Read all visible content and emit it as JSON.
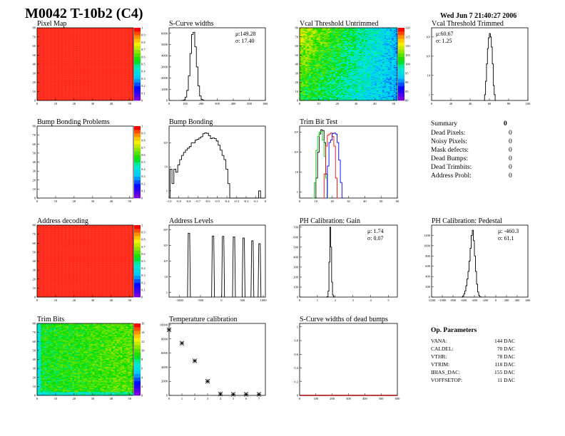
{
  "header": {
    "title": "M0042 T-10b2 (C4)",
    "date": "Wed Jun  7 21:40:27 2006"
  },
  "summary": {
    "title": "Summary",
    "total": "0",
    "rows": [
      {
        "label": "Dead Pixels:",
        "value": "0"
      },
      {
        "label": "Noisy Pixels:",
        "value": "0"
      },
      {
        "label": "Mask defects:",
        "value": "0"
      },
      {
        "label": "Dead Bumps:",
        "value": "0"
      },
      {
        "label": "Dead Trimbits:",
        "value": "0"
      },
      {
        "label": "Address Probl:",
        "value": "0"
      }
    ]
  },
  "op_parameters": {
    "title": "Op. Parameters",
    "rows": [
      {
        "label": "VANA:",
        "value": "144 DAC"
      },
      {
        "label": "CALDEL:",
        "value": "70 DAC"
      },
      {
        "label": "VTHR:",
        "value": "78 DAC"
      },
      {
        "label": "VTRIM:",
        "value": "118 DAC"
      },
      {
        "label": "IBIAS_DAC:",
        "value": "155 DAC"
      },
      {
        "label": "VOFFSETOP:",
        "value": "11 DAC"
      }
    ]
  },
  "colors": {
    "red": "#ff0000",
    "green": "#00cc00",
    "blue": "#0000ff",
    "black": "#000000",
    "frame": "#000000"
  },
  "chart_data": [
    {
      "id": "pixel-map",
      "type": "heatmap",
      "title": "Pixel Map",
      "xlim": [
        0,
        52
      ],
      "ylim": [
        0,
        80
      ],
      "zlim": [
        0,
        1
      ],
      "xticks": [
        "0",
        "10",
        "20",
        "30",
        "40",
        "50"
      ],
      "yticks": [
        "0",
        "10",
        "20",
        "30",
        "40",
        "50",
        "60",
        "70",
        "80"
      ],
      "zticks": [
        "0",
        "0.1",
        "0.2",
        "0.3",
        "0.4",
        "0.5",
        "0.6",
        "0.7",
        "0.8",
        "0.9",
        "1"
      ],
      "pattern": "uniform",
      "z_mean": 1.0
    },
    {
      "id": "s-curve-widths",
      "type": "bar",
      "title": "S-Curve widths",
      "xlim": [
        0,
        600
      ],
      "ylim": [
        0,
        6500
      ],
      "log_y": false,
      "xticks": [
        "0",
        "100",
        "200",
        "300",
        "400",
        "500",
        "600"
      ],
      "yticks": [
        "0",
        "1000",
        "2000",
        "3000",
        "4000",
        "5000",
        "6000"
      ],
      "stats": [
        "μ:149.28",
        "σ: 17.40"
      ],
      "series": [
        {
          "color": "#000000",
          "x0": 80,
          "w": 10,
          "counts": [
            10,
            50,
            300,
            900,
            2200,
            4200,
            5900,
            6100,
            4800,
            3000,
            1300,
            400,
            100,
            20
          ]
        }
      ]
    },
    {
      "id": "vcal-threshold-untrimmed",
      "type": "heatmap",
      "title": "Vcal Threshold Untrimmed",
      "xlim": [
        0,
        52
      ],
      "ylim": [
        0,
        80
      ],
      "zlim": [
        75,
        125
      ],
      "xticks": [
        "0",
        "10",
        "20",
        "30",
        "40",
        "50"
      ],
      "yticks": [
        "0",
        "10",
        "20",
        "30",
        "40",
        "50",
        "60",
        "70",
        "80"
      ],
      "zticks": [
        "80",
        "85",
        "90",
        "95",
        "100",
        "105",
        "110",
        "115",
        "120"
      ],
      "pattern": "gradient-left-high",
      "z_mean": 100
    },
    {
      "id": "vcal-threshold-trimmed",
      "type": "bar",
      "title": "Vcal Threshold Trimmed",
      "xlim": [
        0,
        100
      ],
      "ylim": [
        0.5,
        3000
      ],
      "log_y": true,
      "xticks": [
        "0",
        "20",
        "40",
        "60",
        "80",
        "100"
      ],
      "yticks": [
        "1",
        "10",
        "10²",
        "10³"
      ],
      "stats": [
        "μ:60.67",
        "σ: 1.25"
      ],
      "series": [
        {
          "color": "#000000",
          "x0": 54,
          "w": 1,
          "counts": [
            0,
            1,
            5,
            40,
            250,
            900,
            1500,
            1000,
            300,
            40,
            3,
            1,
            0
          ]
        }
      ]
    },
    {
      "id": "bump-bonding-problems",
      "type": "heatmap",
      "title": "Bump Bonding Problems",
      "xlim": [
        0,
        52
      ],
      "ylim": [
        0,
        80
      ],
      "zlim": [
        0,
        1
      ],
      "xticks": [
        "0",
        "10",
        "20",
        "30",
        "40",
        "50"
      ],
      "yticks": [
        "0",
        "10",
        "20",
        "30",
        "40",
        "50",
        "60",
        "70",
        "80"
      ],
      "zticks": [
        "0",
        "0.1",
        "0.2",
        "0.3",
        "0.4",
        "0.5",
        "0.6",
        "0.7",
        "0.8",
        "0.9",
        "1"
      ],
      "pattern": "empty",
      "z_mean": 0
    },
    {
      "id": "bump-bonding",
      "type": "bar",
      "title": "Bump Bonding",
      "xlim": [
        -1,
        0
      ],
      "ylim": [
        0.5,
        500
      ],
      "log_y": true,
      "xticks": [
        "-1.0",
        "-0.9",
        "-0.8",
        "-0.7",
        "-0.6",
        "-0.5",
        "-0.4",
        "-0.3",
        "-0.2",
        "-0.1",
        "0"
      ],
      "yticks": [
        "1",
        "10",
        "10²"
      ],
      "stats": [],
      "series": [
        {
          "color": "#000000",
          "x0": -0.99,
          "w": 0.02,
          "counts": [
            8,
            2,
            8,
            6,
            12,
            20,
            30,
            40,
            50,
            60,
            70,
            100,
            100,
            130,
            140,
            160,
            180,
            240,
            260,
            250,
            200,
            150,
            160,
            150,
            120,
            80,
            50,
            30,
            20,
            8,
            2,
            0,
            0,
            0,
            0,
            0,
            0,
            0,
            0,
            0,
            0,
            0,
            0,
            0,
            0,
            0,
            1,
            0,
            0
          ]
        }
      ]
    },
    {
      "id": "trim-bit-test",
      "type": "bar",
      "title": "Trim Bit Test",
      "xlim": [
        0,
        60
      ],
      "ylim": [
        0.5,
        2000
      ],
      "log_y": true,
      "xticks": [
        "0",
        "10",
        "20",
        "30",
        "40",
        "50",
        "60"
      ],
      "yticks": [
        "1",
        "10",
        "10²",
        "10³"
      ],
      "stats": [],
      "series": [
        {
          "color": "#000000",
          "x0": 9,
          "w": 1,
          "counts": [
            0,
            5,
            100,
            800,
            1300,
            1200,
            300,
            8,
            0
          ]
        },
        {
          "color": "#00cc00",
          "x0": 8,
          "w": 1,
          "counts": [
            0,
            3,
            120,
            600,
            1000,
            1100,
            400,
            60,
            5,
            0
          ]
        },
        {
          "color": "#ff0000",
          "x0": 14,
          "w": 1,
          "counts": [
            0,
            8,
            200,
            700,
            800,
            900,
            600,
            200,
            5,
            0
          ]
        },
        {
          "color": "#0000ff",
          "x0": 16,
          "w": 1,
          "counts": [
            0,
            20,
            300,
            400,
            850,
            900,
            800,
            300,
            40,
            3,
            0
          ]
        }
      ]
    },
    {
      "id": "address-decoding",
      "type": "heatmap",
      "title": "Address decoding",
      "xlim": [
        0,
        52
      ],
      "ylim": [
        0,
        80
      ],
      "zlim": [
        0,
        1
      ],
      "xticks": [
        "0",
        "10",
        "20",
        "30",
        "40",
        "50"
      ],
      "yticks": [
        "0",
        "10",
        "20",
        "30",
        "40",
        "50",
        "60",
        "70",
        "80"
      ],
      "zticks": [
        "0",
        "0.1",
        "0.2",
        "0.3",
        "0.4",
        "0.5",
        "0.6",
        "0.7",
        "0.8",
        "0.9",
        "1"
      ],
      "pattern": "uniform",
      "z_mean": 1.0
    },
    {
      "id": "address-levels",
      "type": "bar",
      "title": "Address Levels",
      "xlim": [
        -1250,
        1050
      ],
      "ylim": [
        0.5,
        20000
      ],
      "log_y": true,
      "xticks": [
        "-1000",
        "-500",
        "0",
        "500",
        "1000"
      ],
      "yticks": [
        "1",
        "10",
        "10²",
        "10³",
        "10⁴"
      ],
      "stats": [],
      "peaks": [
        {
          "x": -775,
          "y": 6000
        },
        {
          "x": -200,
          "y": 4000
        },
        {
          "x": 40,
          "y": 3800
        },
        {
          "x": 300,
          "y": 3500
        },
        {
          "x": 530,
          "y": 3000
        },
        {
          "x": 740,
          "y": 2000
        },
        {
          "x": 910,
          "y": 1300
        }
      ]
    },
    {
      "id": "ph-calibration-gain",
      "type": "bar",
      "title": "PH Calibration: Gain",
      "xlim": [
        0,
        5.5
      ],
      "ylim": [
        0,
        720
      ],
      "log_y": false,
      "xticks": [
        "0",
        "1",
        "2",
        "3",
        "4",
        "5"
      ],
      "yticks": [
        "0",
        "100",
        "200",
        "300",
        "400",
        "500",
        "600",
        "700"
      ],
      "stats": [
        "μ: 1.74",
        "σ: 0.07"
      ],
      "series": [
        {
          "color": "#000000",
          "x0": 1.5,
          "w": 0.05,
          "counts": [
            0,
            5,
            60,
            350,
            700,
            500,
            150,
            20,
            2,
            0
          ]
        }
      ]
    },
    {
      "id": "ph-calibration-pedestal",
      "type": "bar",
      "title": "PH Calibration: Pedestal",
      "xlim": [
        -1200,
        600
      ],
      "ylim": [
        0,
        1400
      ],
      "log_y": false,
      "xticks": [
        "-1200",
        "-1000",
        "-800",
        "-600",
        "-400",
        "-200",
        "0",
        "200",
        "400",
        "600"
      ],
      "yticks": [
        "0",
        "200",
        "400",
        "600",
        "800",
        "1000",
        "1200"
      ],
      "stats": [
        "μ: -460.3",
        "σ: 61.1"
      ],
      "series": [
        {
          "color": "#000000",
          "x0": -640,
          "w": 20,
          "counts": [
            0,
            20,
            60,
            120,
            220,
            350,
            500,
            700,
            950,
            1200,
            1300,
            1100,
            800,
            500,
            250,
            100,
            30,
            5,
            0
          ]
        }
      ]
    },
    {
      "id": "trim-bits",
      "type": "heatmap",
      "title": "Trim Bits",
      "xlim": [
        0,
        52
      ],
      "ylim": [
        0,
        80
      ],
      "zlim": [
        0,
        16
      ],
      "xticks": [
        "0",
        "10",
        "20",
        "30",
        "40",
        "50"
      ],
      "yticks": [
        "0",
        "10",
        "20",
        "30",
        "40",
        "50",
        "60",
        "70",
        "80"
      ],
      "zticks": [
        "0",
        "2",
        "4",
        "6",
        "8",
        "10",
        "12",
        "14",
        "16"
      ],
      "pattern": "noise-mid",
      "z_mean": 9
    },
    {
      "id": "temperature-calibration",
      "type": "scatter",
      "title": "Temperature calibration",
      "xlim": [
        0,
        7.5
      ],
      "ylim": [
        0,
        10200
      ],
      "log_y": false,
      "xticks": [
        "0",
        "1",
        "2",
        "3",
        "4",
        "5",
        "6",
        "7"
      ],
      "yticks": [
        "0",
        "2000",
        "4000",
        "6000",
        "8000",
        "10000"
      ],
      "stats": [],
      "points": [
        {
          "x": 0,
          "y": 9300
        },
        {
          "x": 1,
          "y": 7400
        },
        {
          "x": 2,
          "y": 4900
        },
        {
          "x": 3,
          "y": 2000
        },
        {
          "x": 4,
          "y": 200
        },
        {
          "x": 5,
          "y": 150
        },
        {
          "x": 6,
          "y": 150
        },
        {
          "x": 7,
          "y": 150
        }
      ]
    },
    {
      "id": "s-curve-widths-dead-bumps",
      "type": "bar",
      "title": "S-Curve widths of dead bumps",
      "xlim": [
        0,
        600
      ],
      "ylim": [
        0,
        1.05
      ],
      "log_y": false,
      "xticks": [
        "0",
        "100",
        "200",
        "300",
        "400",
        "500",
        "600"
      ],
      "yticks": [
        "0",
        "0.2",
        "0.4",
        "0.6",
        "0.8",
        "1"
      ],
      "stats": [],
      "series": [
        {
          "color": "#aa0000",
          "x0": 0,
          "w": 600,
          "counts": [
            0
          ]
        }
      ]
    }
  ]
}
